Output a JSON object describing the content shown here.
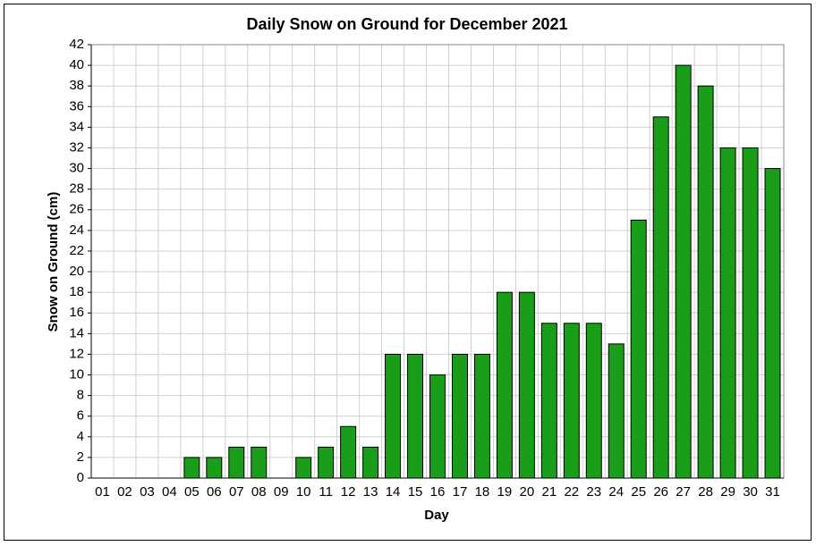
{
  "chart_data": {
    "type": "bar",
    "title": "Daily Snow on Ground for December 2021",
    "x_label": "Day",
    "y_label": "Snow on Ground (cm)",
    "categories": [
      "01",
      "02",
      "03",
      "04",
      "05",
      "06",
      "07",
      "08",
      "09",
      "10",
      "11",
      "12",
      "13",
      "14",
      "15",
      "16",
      "17",
      "18",
      "19",
      "20",
      "21",
      "22",
      "23",
      "24",
      "25",
      "26",
      "27",
      "28",
      "29",
      "30",
      "31"
    ],
    "values": [
      0,
      0,
      0,
      0,
      2,
      2,
      3,
      3,
      0,
      2,
      3,
      5,
      3,
      12,
      12,
      10,
      12,
      12,
      18,
      18,
      15,
      15,
      15,
      13,
      25,
      35,
      40,
      38,
      32,
      32,
      30
    ],
    "color": "#1a9e1a",
    "ylim": [
      0,
      42
    ],
    "yticks": [
      0,
      2,
      4,
      6,
      8,
      10,
      12,
      14,
      16,
      18,
      20,
      22,
      24,
      26,
      28,
      30,
      32,
      34,
      36,
      38,
      40,
      42
    ],
    "grid": true
  }
}
